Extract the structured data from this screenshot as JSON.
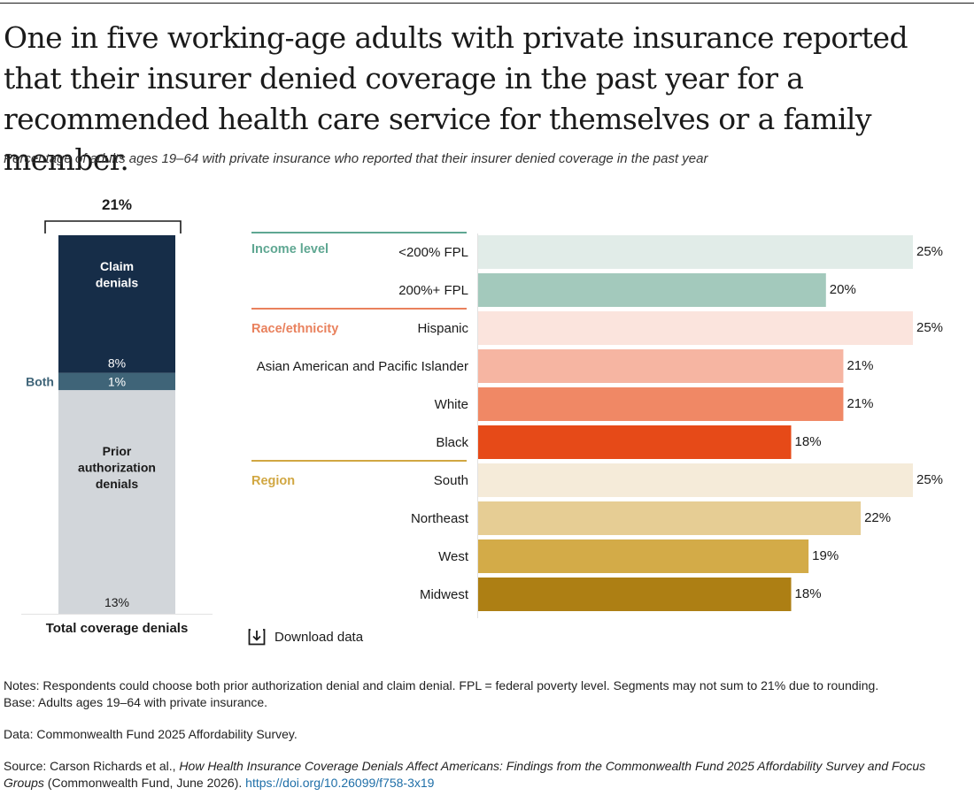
{
  "title": "One in five working-age adults with private insurance reported that their insurer denied coverage in the past year for a recommended health care service for themselves or a family member.",
  "subtitle": "Percentage of adults ages 19–64 with private insurance who reported that their insurer denied coverage in the past year",
  "download_label": "Download data",
  "notes": {
    "line1": "Notes: Respondents could choose both prior authorization denial and claim denial. FPL = federal poverty level. Segments may not sum to 21% due to rounding.",
    "line2": "Base: Adults ages 19–64 with private insurance.",
    "data_source": "Data: Commonwealth Fund 2025 Affordability Survey.",
    "source_prefix": "Source: Carson Richards et al., ",
    "source_title": "How Health Insurance Coverage Denials Affect Americans: Findings from the Commonwealth Fund 2025 Affordability Survey and Focus Groups",
    "source_suffix": " (Commonwealth Fund, June 2026). ",
    "source_link": "https://doi.org/10.26099/f758-3x19"
  },
  "chart_data": [
    {
      "type": "bar",
      "orientation": "vertical-stacked",
      "total_label": "21%",
      "xlabel": "Total coverage denials",
      "segments": [
        {
          "name": "Prior authorization denials",
          "value_label": "13%",
          "value": 13,
          "color": "#d2d6da"
        },
        {
          "name": "Both",
          "value_label": "1%",
          "value": 1,
          "color": "#3f6478"
        },
        {
          "name": "Claim denials",
          "value_label": "8%",
          "value": 8,
          "color": "#162d48"
        }
      ]
    },
    {
      "type": "bar",
      "orientation": "horizontal",
      "xlim": [
        0,
        25
      ],
      "groups": [
        {
          "name": "Income level",
          "color": "#5fa792",
          "items": [
            {
              "label": "<200% FPL",
              "value": 25,
              "value_label": "25%",
              "color": "#e1ece8"
            },
            {
              "label": "200%+ FPL",
              "value": 20,
              "value_label": "20%",
              "color": "#a3c9bc"
            }
          ]
        },
        {
          "name": "Race/ethnicity",
          "color": "#e9815d",
          "items": [
            {
              "label": "Hispanic",
              "value": 25,
              "value_label": "25%",
              "color": "#fbe4dd"
            },
            {
              "label": "Asian American and Pacific Islander",
              "value": 21,
              "value_label": "21%",
              "color": "#f6b5a2"
            },
            {
              "label": "White",
              "value": 21,
              "value_label": "21%",
              "color": "#f08865"
            },
            {
              "label": "Black",
              "value": 18,
              "value_label": "18%",
              "color": "#e64a18"
            }
          ]
        },
        {
          "name": "Region",
          "color": "#d1a742",
          "items": [
            {
              "label": "South",
              "value": 25,
              "value_label": "25%",
              "color": "#f5ebd9"
            },
            {
              "label": "Northeast",
              "value": 22,
              "value_label": "22%",
              "color": "#e6cd94"
            },
            {
              "label": "West",
              "value": 19,
              "value_label": "19%",
              "color": "#d3ab48"
            },
            {
              "label": "Midwest",
              "value": 18,
              "value_label": "18%",
              "color": "#ad7f14"
            }
          ]
        }
      ]
    }
  ]
}
